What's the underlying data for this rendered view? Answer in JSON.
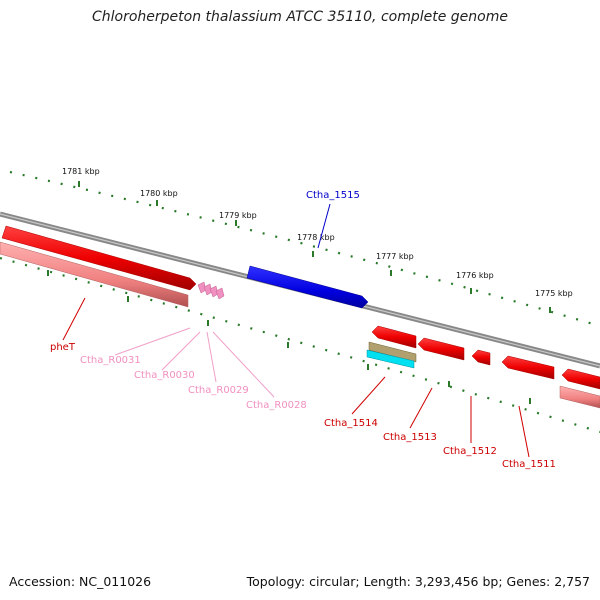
{
  "title": "Chloroherpeton thalassium ATCC 35110, complete genome",
  "footer": {
    "accession": "Accession: NC_011026",
    "info": "Topology: circular; Length: 3,293,456 bp; Genes: 2,757"
  },
  "ruler_labels": [
    "1781 kbp",
    "1780 kbp",
    "1779 kbp",
    "1778 kbp",
    "1777 kbp",
    "1776 kbp",
    "1775 kbp"
  ],
  "gene_labels": {
    "pheT": "pheT",
    "r0031": "Ctha_R0031",
    "r0030": "Ctha_R0030",
    "r0029": "Ctha_R0029",
    "r0028": "Ctha_R0028",
    "c1515": "Ctha_1515",
    "c1514": "Ctha_1514",
    "c1513": "Ctha_1513",
    "c1512": "Ctha_1512",
    "c1511": "Ctha_1511"
  },
  "colors": {
    "cds": "#ff0000",
    "cds_light": "#f08080",
    "rna": "#f090c0",
    "blue_gene": "#0000ee",
    "backbone": "#808080",
    "tick": "#2a7a2a",
    "olive": "#b0a070",
    "cyan": "#00e0f0"
  }
}
